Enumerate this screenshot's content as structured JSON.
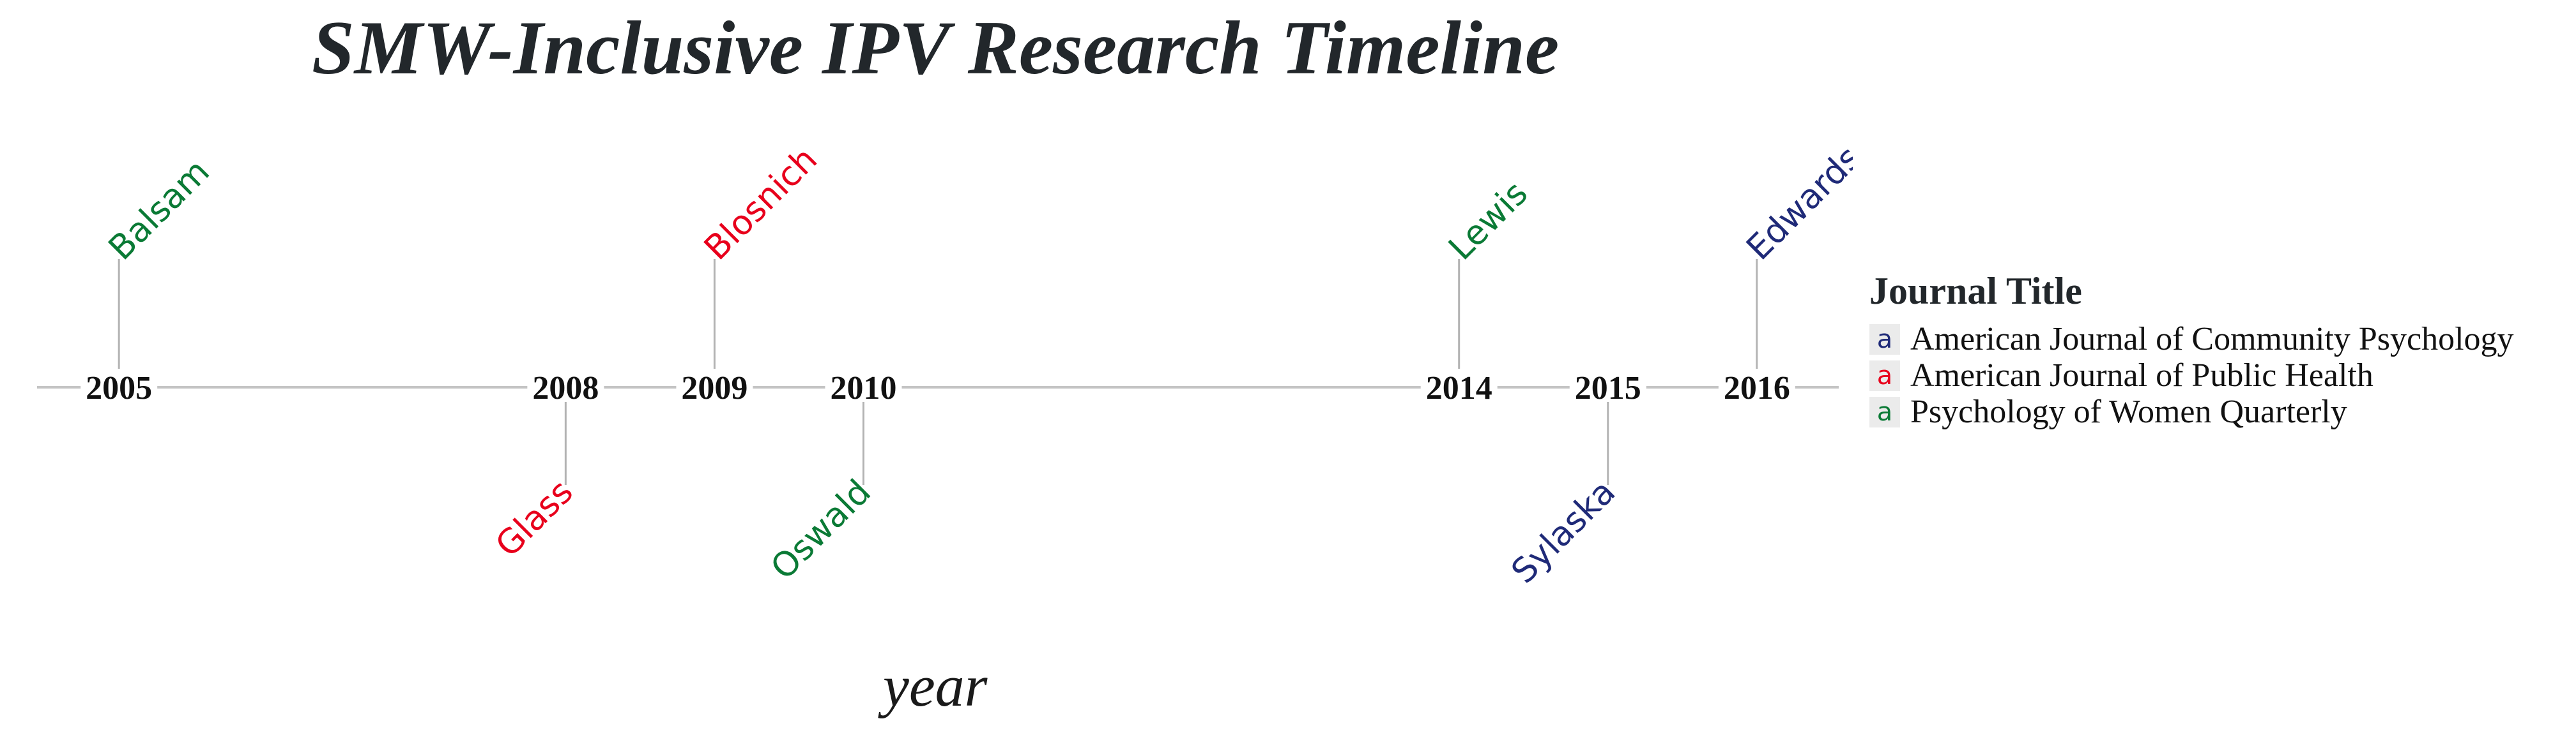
{
  "title": "SMW-Inclusive IPV Research Timeline",
  "chart_data": {
    "type": "timeline",
    "title": "SMW-Inclusive IPV Research Timeline",
    "xlabel": "year",
    "xlim": [
      2004.45,
      2016.55
    ],
    "grid": false,
    "legend": {
      "title": "Journal Title",
      "placement": "right",
      "entries": [
        {
          "name": "American Journal of Community Psychology",
          "color": "#1f2a78",
          "key_glyph": "a"
        },
        {
          "name": "American Journal of Public Health",
          "color": "#e8001c",
          "key_glyph": "a"
        },
        {
          "name": "Psychology of Women Quarterly",
          "color": "#0a7a35",
          "key_glyph": "a"
        }
      ]
    },
    "tick_years": [
      2005,
      2008,
      2009,
      2010,
      2014,
      2015,
      2016
    ],
    "events": [
      {
        "year": 2005,
        "author": "Balsam",
        "journal": "Psychology of Women Quarterly",
        "side": "above"
      },
      {
        "year": 2008,
        "author": "Glass",
        "journal": "American Journal of Public Health",
        "side": "below"
      },
      {
        "year": 2009,
        "author": "Blosnich",
        "journal": "American Journal of Public Health",
        "side": "above"
      },
      {
        "year": 2010,
        "author": "Oswald",
        "journal": "Psychology of Women Quarterly",
        "side": "below"
      },
      {
        "year": 2014,
        "author": "Lewis",
        "journal": "Psychology of Women Quarterly",
        "side": "above"
      },
      {
        "year": 2015,
        "author": "Sylaska",
        "journal": "American Journal of Community Psychology",
        "side": "below"
      },
      {
        "year": 2016,
        "author": "Edwards",
        "journal": "American Journal of Community Psychology",
        "side": "above"
      }
    ]
  }
}
